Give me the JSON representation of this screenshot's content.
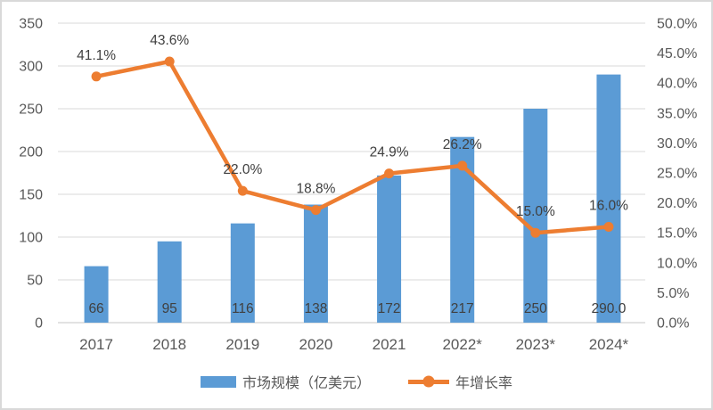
{
  "chart_data": {
    "type": "bar",
    "subtype": "combo-bar-line",
    "title": "",
    "categories": [
      "2017",
      "2018",
      "2019",
      "2020",
      "2021",
      "2022*",
      "2023*",
      "2024*"
    ],
    "series": [
      {
        "name": "市场规模（亿美元）",
        "type": "bar",
        "axis": "left",
        "color": "#5B9BD5",
        "values": [
          66,
          95,
          116,
          138,
          172,
          217,
          250,
          290
        ],
        "value_labels": [
          "66",
          "95",
          "116",
          "138",
          "172",
          "217",
          "250",
          "290.0"
        ]
      },
      {
        "name": "年增长率",
        "type": "line",
        "axis": "right",
        "color": "#ED7D31",
        "values": [
          41.1,
          43.6,
          22.0,
          18.8,
          24.9,
          26.2,
          15.0,
          16.0
        ],
        "value_labels": [
          "41.1%",
          "43.6%",
          "22.0%",
          "18.8%",
          "24.9%",
          "26.2%",
          "15.0%",
          "16.0%"
        ]
      }
    ],
    "left_axis": {
      "min": 0,
      "max": 350,
      "step": 50,
      "tick_labels": [
        "0",
        "50",
        "100",
        "150",
        "200",
        "250",
        "300",
        "350"
      ]
    },
    "right_axis": {
      "min": 0,
      "max": 50,
      "step": 5,
      "tick_labels": [
        "0.0%",
        "5.0%",
        "10.0%",
        "15.0%",
        "20.0%",
        "25.0%",
        "30.0%",
        "35.0%",
        "40.0%",
        "45.0%",
        "50.0%"
      ]
    },
    "grid": true,
    "legend_position": "bottom"
  },
  "legend": {
    "bar_label": "市场规模（亿美元）",
    "line_label": "年增长率"
  },
  "style": {
    "bar_color": "#5B9BD5",
    "line_color": "#ED7D31",
    "grid_color": "#D9D9D9",
    "axis_text_color": "#595959",
    "data_label_color": "#404040",
    "border_color": "#D9D9D9",
    "background": "#FFFFFF"
  }
}
